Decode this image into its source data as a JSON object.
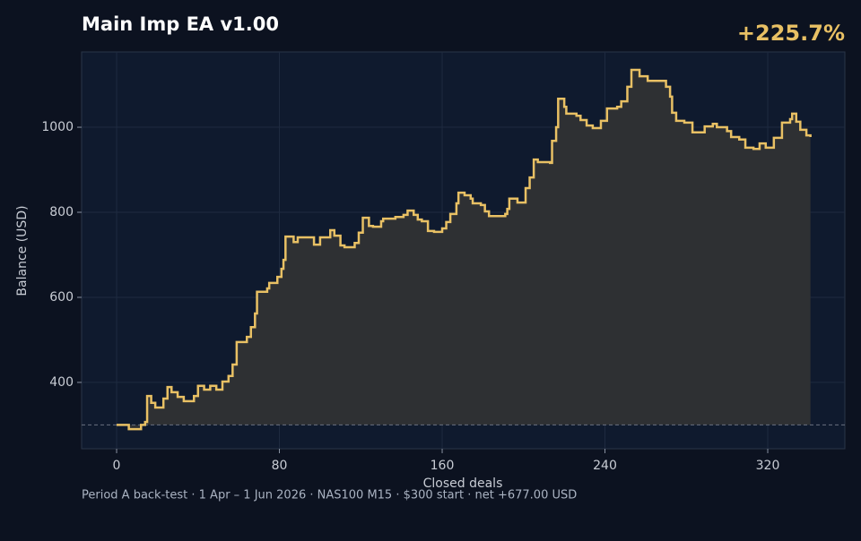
{
  "chart_data": {
    "type": "line",
    "step": "post",
    "title": "Main Imp EA v1.00",
    "headline": "+225.7%",
    "xlabel": "Closed deals",
    "ylabel": "Balance (USD)",
    "footer": "Period A back-test  ·  1 Apr – 1 Jun 2026  ·  NAS100 M15  ·  $300 start  ·  net +677.00 USD",
    "xlim": [
      -17.2,
      357.9
    ],
    "ylim": [
      244,
      1177
    ],
    "xticks": [
      0,
      80,
      160,
      240,
      320
    ],
    "yticks": [
      400,
      600,
      800,
      1000
    ],
    "grid": true,
    "reference_line": 300,
    "fill_area": true,
    "series": [
      {
        "name": "Balance",
        "color": "#e8c064",
        "x": [
          0,
          6,
          12,
          14,
          15,
          17,
          19,
          23,
          25,
          27,
          30,
          33,
          38,
          40,
          43,
          46,
          49,
          52,
          55,
          57,
          59,
          64,
          66,
          68,
          69,
          74,
          75,
          79,
          81,
          82,
          83,
          87,
          89,
          97,
          100,
          105,
          107,
          110,
          112,
          117,
          119,
          121,
          124,
          126,
          130,
          131,
          137,
          141,
          143,
          146,
          148,
          150,
          153,
          156,
          160,
          162,
          164,
          167,
          168,
          171,
          174,
          175,
          179,
          181,
          183,
          191,
          192,
          193,
          197,
          201,
          203,
          205,
          207,
          213,
          214,
          216,
          217,
          220,
          221,
          226,
          228,
          231,
          234,
          238,
          241,
          246,
          248,
          251,
          253,
          257,
          261,
          270,
          272,
          273,
          275,
          279,
          283,
          289,
          293,
          295,
          300,
          302,
          306,
          309,
          313,
          316,
          319,
          323,
          327,
          331,
          332,
          334,
          336,
          339,
          341
        ],
        "values": [
          300,
          290,
          300,
          307,
          368,
          352,
          341,
          362,
          389,
          377,
          366,
          356,
          368,
          392,
          383,
          392,
          383,
          402,
          415,
          442,
          495,
          507,
          530,
          562,
          613,
          621,
          634,
          648,
          667,
          688,
          743,
          730,
          741,
          724,
          741,
          758,
          745,
          722,
          718,
          728,
          752,
          787,
          768,
          766,
          779,
          785,
          789,
          794,
          804,
          794,
          783,
          779,
          756,
          754,
          762,
          777,
          796,
          821,
          846,
          840,
          832,
          821,
          817,
          802,
          791,
          796,
          808,
          832,
          823,
          857,
          882,
          924,
          918,
          916,
          968,
          1000,
          1067,
          1048,
          1032,
          1027,
          1017,
          1004,
          998,
          1015,
          1044,
          1048,
          1061,
          1095,
          1135,
          1120,
          1109,
          1095,
          1072,
          1034,
          1015,
          1011,
          988,
          1002,
          1008,
          1000,
          991,
          977,
          971,
          952,
          949,
          962,
          952,
          975,
          1011,
          1019,
          1032,
          1013,
          994,
          981,
          977
        ]
      }
    ]
  }
}
